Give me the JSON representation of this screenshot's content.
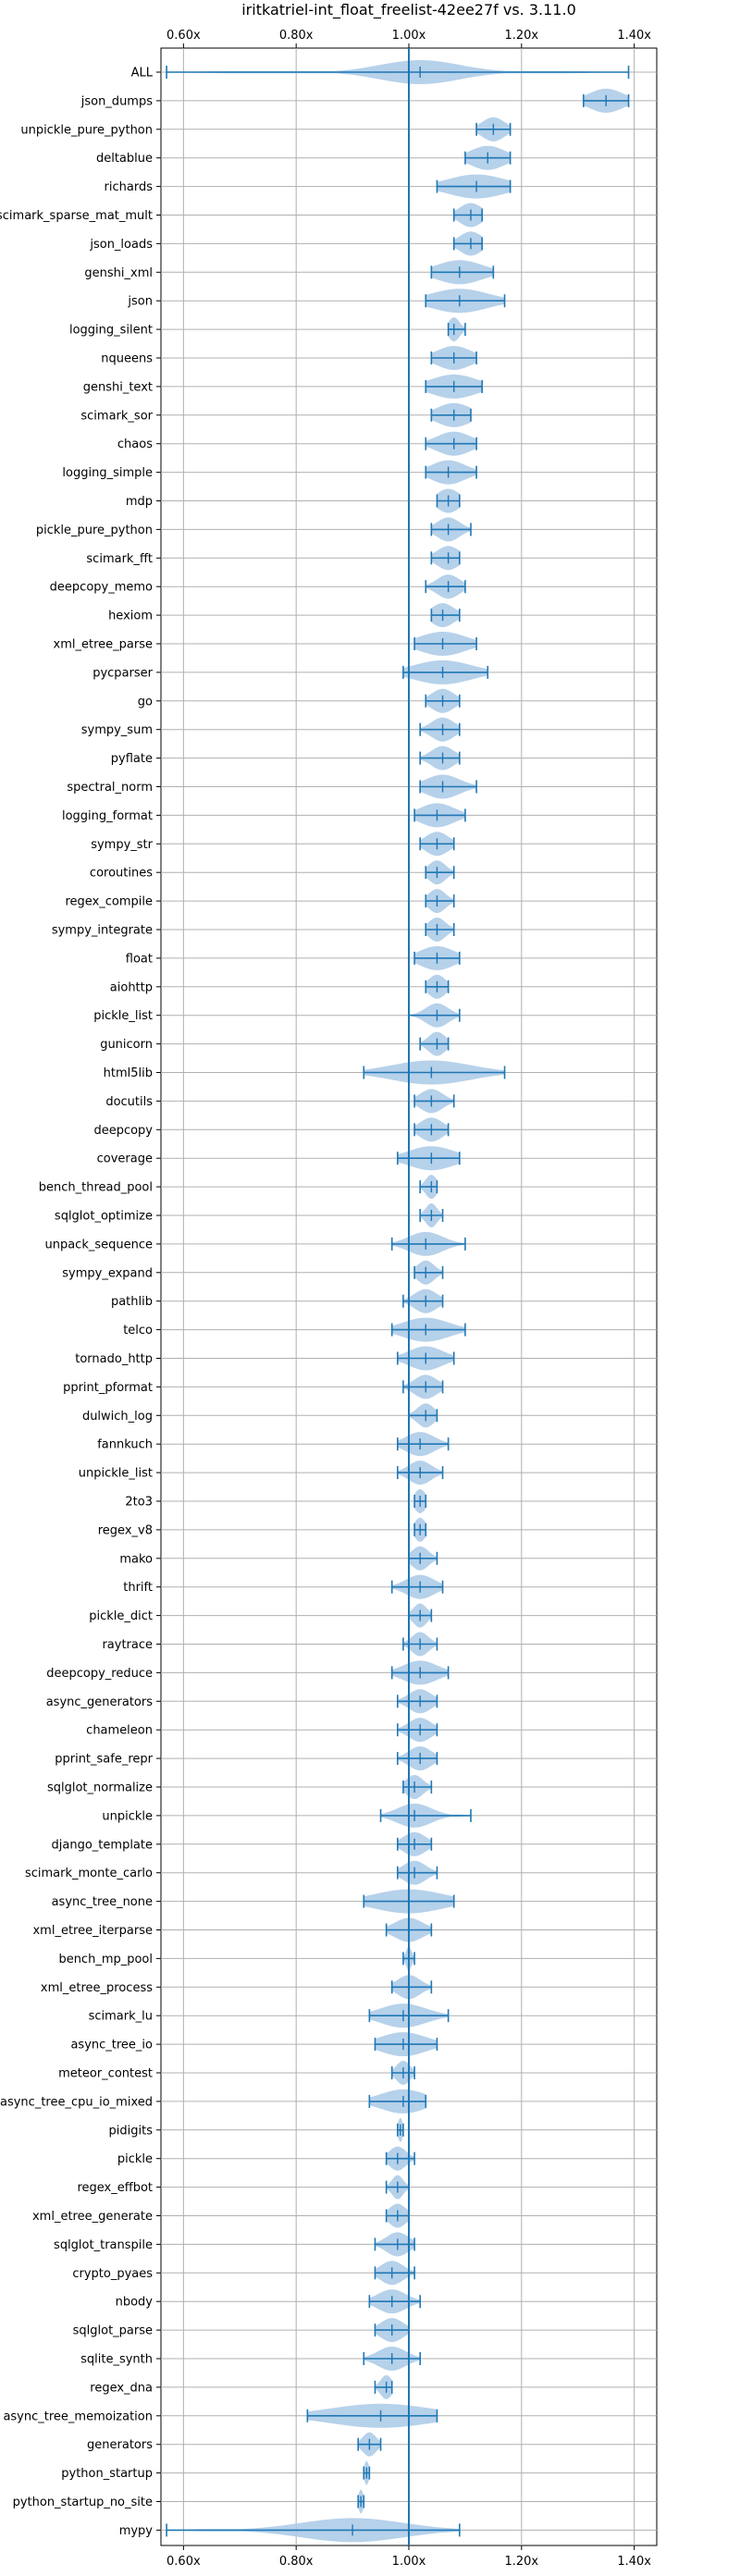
{
  "chart_data": {
    "type": "violin",
    "orientation": "horizontal",
    "title": "iritkatriel-int_float_freelist-42ee27f vs. 3.11.0",
    "x_ticks": [
      "0.60x",
      "0.80x",
      "1.00x",
      "1.20x",
      "1.40x"
    ],
    "x_tick_values": [
      0.6,
      0.8,
      1.0,
      1.2,
      1.4
    ],
    "xlim": [
      0.56,
      1.44
    ],
    "reference_line": 1.0,
    "grid": true,
    "colors": {
      "violin": "#a9c9e6",
      "line": "#1f77b4"
    },
    "series": [
      {
        "name": "ALL",
        "min": 0.57,
        "max": 1.39,
        "median": 1.02,
        "spread": 0.07
      },
      {
        "name": "json_dumps",
        "min": 1.31,
        "max": 1.39,
        "median": 1.35,
        "spread": 0.03
      },
      {
        "name": "unpickle_pure_python",
        "min": 1.12,
        "max": 1.18,
        "median": 1.15,
        "spread": 0.02
      },
      {
        "name": "deltablue",
        "min": 1.1,
        "max": 1.18,
        "median": 1.14,
        "spread": 0.03
      },
      {
        "name": "richards",
        "min": 1.05,
        "max": 1.18,
        "median": 1.12,
        "spread": 0.05
      },
      {
        "name": "scimark_sparse_mat_mult",
        "min": 1.08,
        "max": 1.13,
        "median": 1.11,
        "spread": 0.02
      },
      {
        "name": "json_loads",
        "min": 1.08,
        "max": 1.13,
        "median": 1.11,
        "spread": 0.02
      },
      {
        "name": "genshi_xml",
        "min": 1.04,
        "max": 1.15,
        "median": 1.09,
        "spread": 0.04
      },
      {
        "name": "json",
        "min": 1.03,
        "max": 1.17,
        "median": 1.09,
        "spread": 0.05
      },
      {
        "name": "logging_silent",
        "min": 1.07,
        "max": 1.1,
        "median": 1.08,
        "spread": 0.01
      },
      {
        "name": "nqueens",
        "min": 1.04,
        "max": 1.12,
        "median": 1.08,
        "spread": 0.03
      },
      {
        "name": "genshi_text",
        "min": 1.03,
        "max": 1.13,
        "median": 1.08,
        "spread": 0.04
      },
      {
        "name": "scimark_sor",
        "min": 1.04,
        "max": 1.11,
        "median": 1.08,
        "spread": 0.03
      },
      {
        "name": "chaos",
        "min": 1.03,
        "max": 1.12,
        "median": 1.08,
        "spread": 0.03
      },
      {
        "name": "logging_simple",
        "min": 1.03,
        "max": 1.12,
        "median": 1.07,
        "spread": 0.03
      },
      {
        "name": "mdp",
        "min": 1.05,
        "max": 1.09,
        "median": 1.07,
        "spread": 0.02
      },
      {
        "name": "pickle_pure_python",
        "min": 1.04,
        "max": 1.11,
        "median": 1.07,
        "spread": 0.02
      },
      {
        "name": "scimark_fft",
        "min": 1.04,
        "max": 1.09,
        "median": 1.07,
        "spread": 0.02
      },
      {
        "name": "deepcopy_memo",
        "min": 1.03,
        "max": 1.1,
        "median": 1.07,
        "spread": 0.02
      },
      {
        "name": "hexiom",
        "min": 1.04,
        "max": 1.09,
        "median": 1.06,
        "spread": 0.02
      },
      {
        "name": "xml_etree_parse",
        "min": 1.01,
        "max": 1.12,
        "median": 1.06,
        "spread": 0.04
      },
      {
        "name": "pycparser",
        "min": 0.99,
        "max": 1.14,
        "median": 1.06,
        "spread": 0.05
      },
      {
        "name": "go",
        "min": 1.03,
        "max": 1.09,
        "median": 1.06,
        "spread": 0.02
      },
      {
        "name": "sympy_sum",
        "min": 1.02,
        "max": 1.09,
        "median": 1.06,
        "spread": 0.02
      },
      {
        "name": "pyflate",
        "min": 1.02,
        "max": 1.09,
        "median": 1.06,
        "spread": 0.02
      },
      {
        "name": "spectral_norm",
        "min": 1.02,
        "max": 1.12,
        "median": 1.06,
        "spread": 0.03
      },
      {
        "name": "logging_format",
        "min": 1.01,
        "max": 1.1,
        "median": 1.05,
        "spread": 0.03
      },
      {
        "name": "sympy_str",
        "min": 1.02,
        "max": 1.08,
        "median": 1.05,
        "spread": 0.02
      },
      {
        "name": "coroutines",
        "min": 1.03,
        "max": 1.08,
        "median": 1.05,
        "spread": 0.015
      },
      {
        "name": "regex_compile",
        "min": 1.03,
        "max": 1.08,
        "median": 1.05,
        "spread": 0.015
      },
      {
        "name": "sympy_integrate",
        "min": 1.03,
        "max": 1.08,
        "median": 1.05,
        "spread": 0.015
      },
      {
        "name": "float",
        "min": 1.01,
        "max": 1.09,
        "median": 1.05,
        "spread": 0.03
      },
      {
        "name": "aiohttp",
        "min": 1.03,
        "max": 1.07,
        "median": 1.05,
        "spread": 0.015
      },
      {
        "name": "pickle_list",
        "min": 1.0,
        "max": 1.09,
        "median": 1.05,
        "spread": 0.02
      },
      {
        "name": "gunicorn",
        "min": 1.02,
        "max": 1.07,
        "median": 1.05,
        "spread": 0.015
      },
      {
        "name": "html5lib",
        "min": 0.92,
        "max": 1.17,
        "median": 1.04,
        "spread": 0.07
      },
      {
        "name": "docutils",
        "min": 1.01,
        "max": 1.08,
        "median": 1.04,
        "spread": 0.02
      },
      {
        "name": "deepcopy",
        "min": 1.01,
        "max": 1.07,
        "median": 1.04,
        "spread": 0.02
      },
      {
        "name": "coverage",
        "min": 0.98,
        "max": 1.09,
        "median": 1.04,
        "spread": 0.04
      },
      {
        "name": "bench_thread_pool",
        "min": 1.02,
        "max": 1.05,
        "median": 1.04,
        "spread": 0.01
      },
      {
        "name": "sqlglot_optimize",
        "min": 1.02,
        "max": 1.06,
        "median": 1.04,
        "spread": 0.01
      },
      {
        "name": "unpack_sequence",
        "min": 0.97,
        "max": 1.1,
        "median": 1.03,
        "spread": 0.03
      },
      {
        "name": "sympy_expand",
        "min": 1.01,
        "max": 1.06,
        "median": 1.03,
        "spread": 0.015
      },
      {
        "name": "pathlib",
        "min": 0.99,
        "max": 1.06,
        "median": 1.03,
        "spread": 0.02
      },
      {
        "name": "telco",
        "min": 0.97,
        "max": 1.1,
        "median": 1.03,
        "spread": 0.04
      },
      {
        "name": "tornado_http",
        "min": 0.98,
        "max": 1.08,
        "median": 1.03,
        "spread": 0.03
      },
      {
        "name": "pprint_pformat",
        "min": 0.99,
        "max": 1.06,
        "median": 1.03,
        "spread": 0.02
      },
      {
        "name": "dulwich_log",
        "min": 1.0,
        "max": 1.05,
        "median": 1.03,
        "spread": 0.015
      },
      {
        "name": "fannkuch",
        "min": 0.98,
        "max": 1.07,
        "median": 1.02,
        "spread": 0.025
      },
      {
        "name": "unpickle_list",
        "min": 0.98,
        "max": 1.06,
        "median": 1.02,
        "spread": 0.02
      },
      {
        "name": "2to3",
        "min": 1.01,
        "max": 1.03,
        "median": 1.02,
        "spread": 0.01
      },
      {
        "name": "regex_v8",
        "min": 1.01,
        "max": 1.03,
        "median": 1.02,
        "spread": 0.01
      },
      {
        "name": "mako",
        "min": 1.0,
        "max": 1.05,
        "median": 1.02,
        "spread": 0.015
      },
      {
        "name": "thrift",
        "min": 0.97,
        "max": 1.06,
        "median": 1.02,
        "spread": 0.025
      },
      {
        "name": "pickle_dict",
        "min": 1.0,
        "max": 1.04,
        "median": 1.02,
        "spread": 0.012
      },
      {
        "name": "raytrace",
        "min": 0.99,
        "max": 1.05,
        "median": 1.02,
        "spread": 0.015
      },
      {
        "name": "deepcopy_reduce",
        "min": 0.97,
        "max": 1.07,
        "median": 1.02,
        "spread": 0.03
      },
      {
        "name": "async_generators",
        "min": 0.98,
        "max": 1.05,
        "median": 1.02,
        "spread": 0.02
      },
      {
        "name": "chameleon",
        "min": 0.98,
        "max": 1.05,
        "median": 1.02,
        "spread": 0.02
      },
      {
        "name": "pprint_safe_repr",
        "min": 0.98,
        "max": 1.05,
        "median": 1.02,
        "spread": 0.02
      },
      {
        "name": "sqlglot_normalize",
        "min": 0.99,
        "max": 1.04,
        "median": 1.01,
        "spread": 0.015
      },
      {
        "name": "unpickle",
        "min": 0.95,
        "max": 1.11,
        "median": 1.01,
        "spread": 0.03
      },
      {
        "name": "django_template",
        "min": 0.98,
        "max": 1.04,
        "median": 1.01,
        "spread": 0.02
      },
      {
        "name": "scimark_monte_carlo",
        "min": 0.98,
        "max": 1.05,
        "median": 1.01,
        "spread": 0.02
      },
      {
        "name": "async_tree_none",
        "min": 0.92,
        "max": 1.08,
        "median": 1.0,
        "spread": 0.06
      },
      {
        "name": "xml_etree_iterparse",
        "min": 0.96,
        "max": 1.04,
        "median": 1.0,
        "spread": 0.025
      },
      {
        "name": "bench_mp_pool",
        "min": 0.99,
        "max": 1.01,
        "median": 1.0,
        "spread": 0.005
      },
      {
        "name": "xml_etree_process",
        "min": 0.97,
        "max": 1.04,
        "median": 1.0,
        "spread": 0.02
      },
      {
        "name": "scimark_lu",
        "min": 0.93,
        "max": 1.07,
        "median": 0.99,
        "spread": 0.04
      },
      {
        "name": "async_tree_io",
        "min": 0.94,
        "max": 1.05,
        "median": 0.99,
        "spread": 0.04
      },
      {
        "name": "meteor_contest",
        "min": 0.97,
        "max": 1.01,
        "median": 0.99,
        "spread": 0.012
      },
      {
        "name": "async_tree_cpu_io_mixed",
        "min": 0.93,
        "max": 1.03,
        "median": 0.99,
        "spread": 0.04
      },
      {
        "name": "pidigits",
        "min": 0.98,
        "max": 0.99,
        "median": 0.985,
        "spread": 0.004
      },
      {
        "name": "pickle",
        "min": 0.96,
        "max": 1.01,
        "median": 0.98,
        "spread": 0.015
      },
      {
        "name": "regex_effbot",
        "min": 0.96,
        "max": 1.0,
        "median": 0.98,
        "spread": 0.01
      },
      {
        "name": "xml_etree_generate",
        "min": 0.96,
        "max": 1.0,
        "median": 0.98,
        "spread": 0.015
      },
      {
        "name": "sqlglot_transpile",
        "min": 0.94,
        "max": 1.01,
        "median": 0.98,
        "spread": 0.02
      },
      {
        "name": "crypto_pyaes",
        "min": 0.94,
        "max": 1.01,
        "median": 0.97,
        "spread": 0.02
      },
      {
        "name": "nbody",
        "min": 0.93,
        "max": 1.02,
        "median": 0.97,
        "spread": 0.025
      },
      {
        "name": "sqlglot_parse",
        "min": 0.94,
        "max": 1.0,
        "median": 0.97,
        "spread": 0.02
      },
      {
        "name": "sqlite_synth",
        "min": 0.92,
        "max": 1.02,
        "median": 0.97,
        "spread": 0.025
      },
      {
        "name": "regex_dna",
        "min": 0.94,
        "max": 0.97,
        "median": 0.96,
        "spread": 0.01
      },
      {
        "name": "async_tree_memoization",
        "min": 0.82,
        "max": 1.05,
        "median": 0.95,
        "spread": 0.09
      },
      {
        "name": "generators",
        "min": 0.91,
        "max": 0.95,
        "median": 0.93,
        "spread": 0.012
      },
      {
        "name": "python_startup",
        "min": 0.92,
        "max": 0.93,
        "median": 0.925,
        "spread": 0.004
      },
      {
        "name": "python_startup_no_site",
        "min": 0.91,
        "max": 0.92,
        "median": 0.915,
        "spread": 0.004
      },
      {
        "name": "mypy",
        "min": 0.57,
        "max": 1.09,
        "median": 0.9,
        "spread": 0.09
      }
    ]
  }
}
